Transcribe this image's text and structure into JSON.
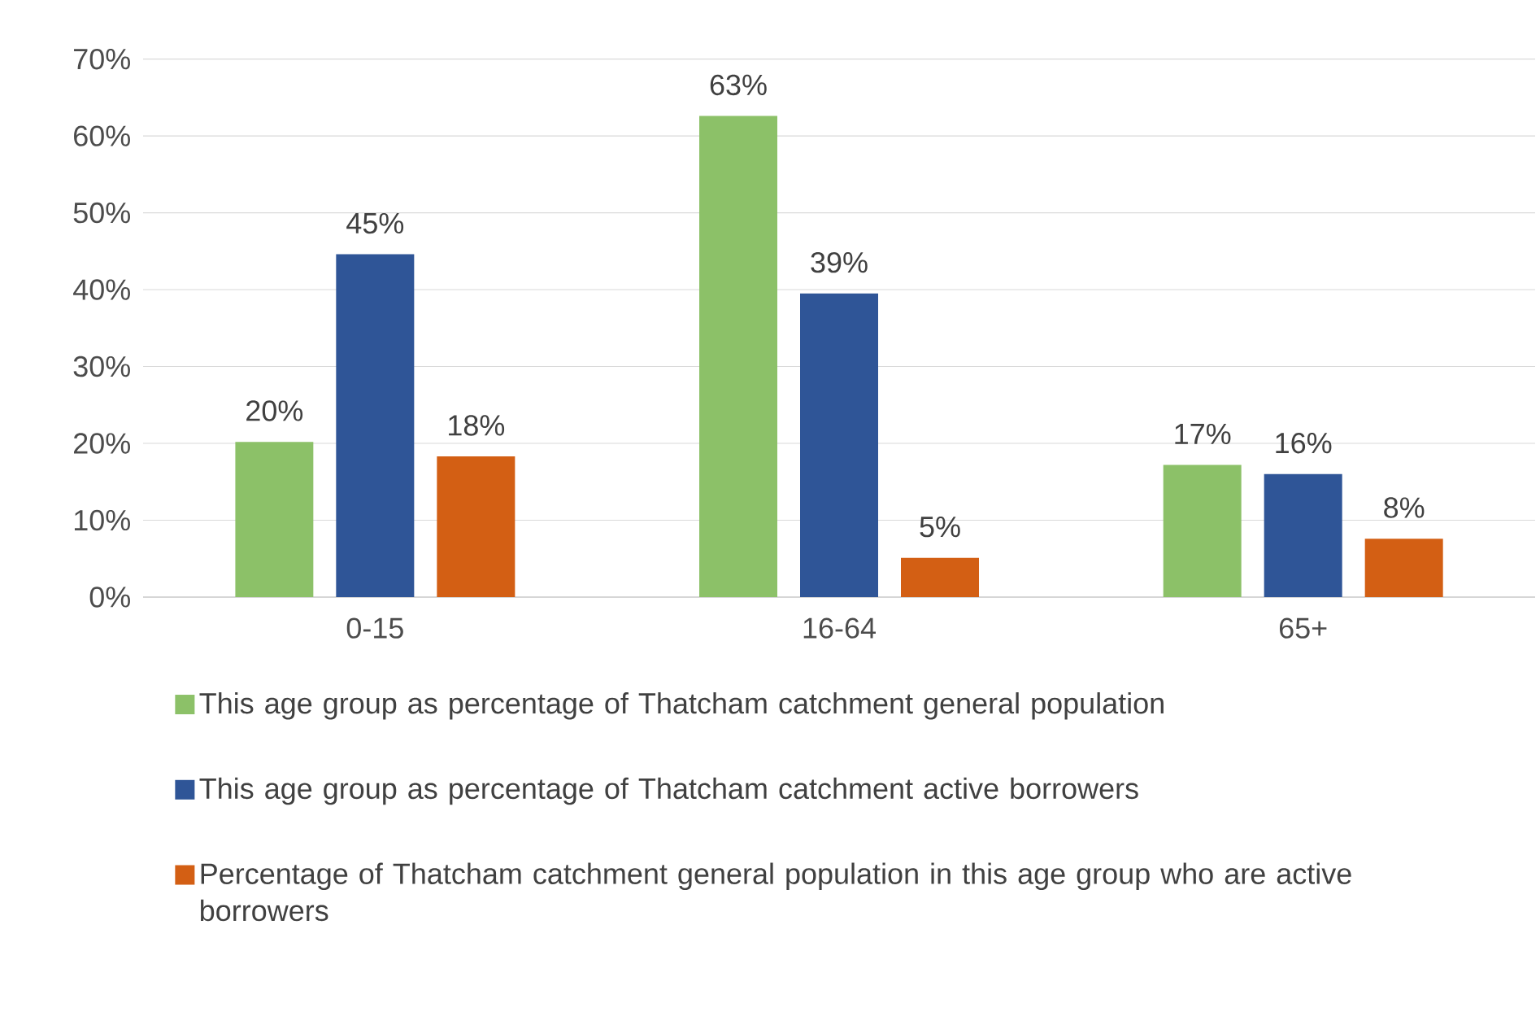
{
  "chart_data": {
    "type": "bar",
    "categories": [
      "0-15",
      "16-64",
      "65+"
    ],
    "series": [
      {
        "name": "This age group as percentage of Thatcham catchment general population",
        "color": "#8cc168",
        "values": [
          20.2,
          62.6,
          17.2
        ],
        "value_labels": [
          "20%",
          "63%",
          "17%"
        ]
      },
      {
        "name": "This age group as percentage of Thatcham catchment active borrowers",
        "color": "#2f5597",
        "values": [
          44.6,
          39.5,
          16.0
        ],
        "value_labels": [
          "45%",
          "39%",
          "16%"
        ]
      },
      {
        "name": "Percentage of Thatcham catchment general population in this age group who are active borrowers",
        "color": "#d35f14",
        "values": [
          18.3,
          5.1,
          7.6
        ],
        "value_labels": [
          "18%",
          "5%",
          "8%"
        ]
      }
    ],
    "ylim": [
      0,
      70
    ],
    "yticks": [
      {
        "value": 0,
        "label": "0%"
      },
      {
        "value": 10,
        "label": "10%"
      },
      {
        "value": 20,
        "label": "20%"
      },
      {
        "value": 30,
        "label": "30%"
      },
      {
        "value": 40,
        "label": "40%"
      },
      {
        "value": 50,
        "label": "50%"
      },
      {
        "value": 60,
        "label": "60%"
      },
      {
        "value": 70,
        "label": "70%"
      }
    ],
    "grid": "y",
    "legend": "bottom"
  }
}
